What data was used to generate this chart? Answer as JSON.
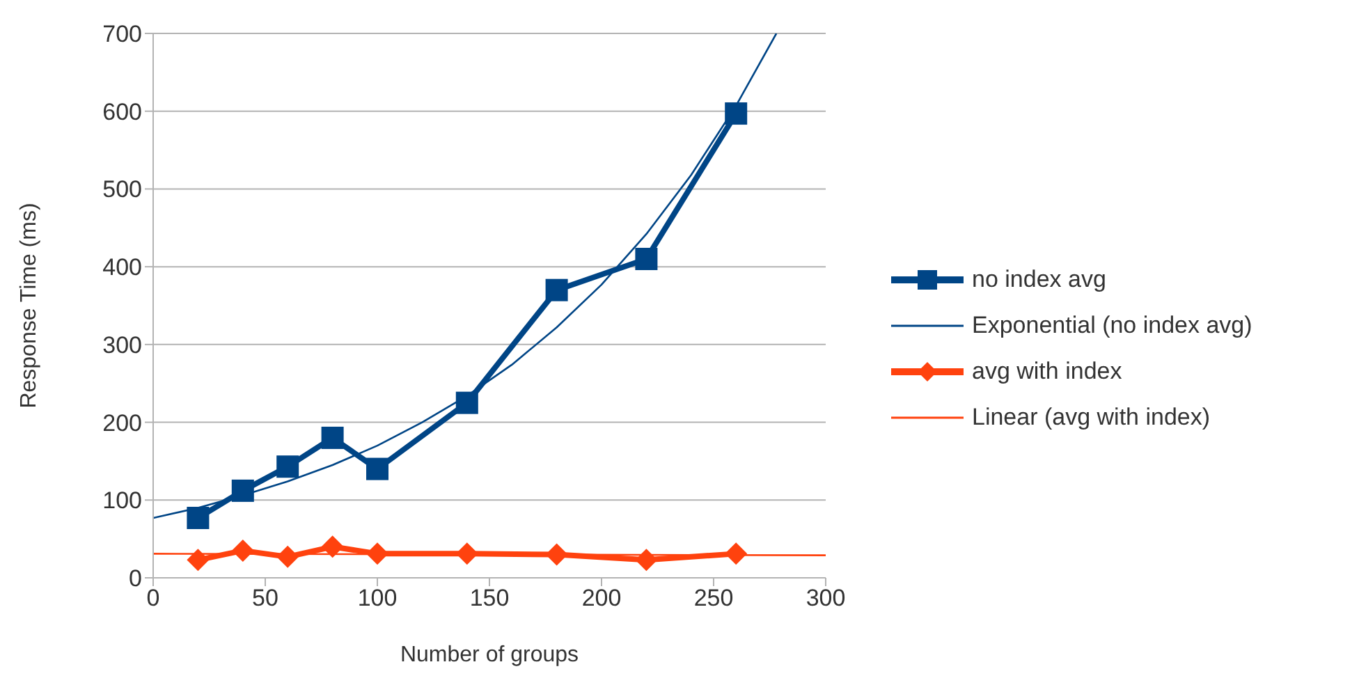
{
  "chart_data": {
    "type": "line",
    "xlabel": "Number of groups",
    "ylabel": "Response Time (ms)",
    "xlim": [
      0,
      300
    ],
    "xticks": [
      0,
      50,
      100,
      150,
      200,
      250,
      300
    ],
    "ylim": [
      0,
      700
    ],
    "yticks": [
      0,
      100,
      200,
      300,
      400,
      500,
      600,
      700
    ],
    "grid": "y",
    "legend": "right",
    "line_style": "solid",
    "series": [
      {
        "name": "no index avg",
        "color": "#004586",
        "marker": "square",
        "x": [
          20,
          40,
          60,
          80,
          100,
          140,
          180,
          220,
          260
        ],
        "values": [
          77,
          112,
          143,
          180,
          140,
          225,
          370,
          410,
          597
        ]
      },
      {
        "name": "Exponential (no index avg)",
        "color": "#004586",
        "marker": "none",
        "x": [
          0,
          20,
          40,
          60,
          80,
          100,
          120,
          140,
          160,
          180,
          200,
          220,
          240,
          260,
          278
        ],
        "values": [
          77,
          90,
          106,
          124,
          145,
          170,
          200,
          234,
          274,
          322,
          377,
          442,
          518,
          607,
          700
        ]
      },
      {
        "name": "avg with index",
        "color": "#ff420e",
        "marker": "diamond",
        "x": [
          20,
          40,
          60,
          80,
          100,
          140,
          180,
          220,
          260
        ],
        "values": [
          23,
          35,
          27,
          40,
          31,
          31,
          30,
          23,
          31
        ]
      },
      {
        "name": "Linear (avg with index)",
        "color": "#ff420e",
        "marker": "none",
        "x": [
          0,
          300
        ],
        "values": [
          31,
          29
        ]
      }
    ]
  }
}
